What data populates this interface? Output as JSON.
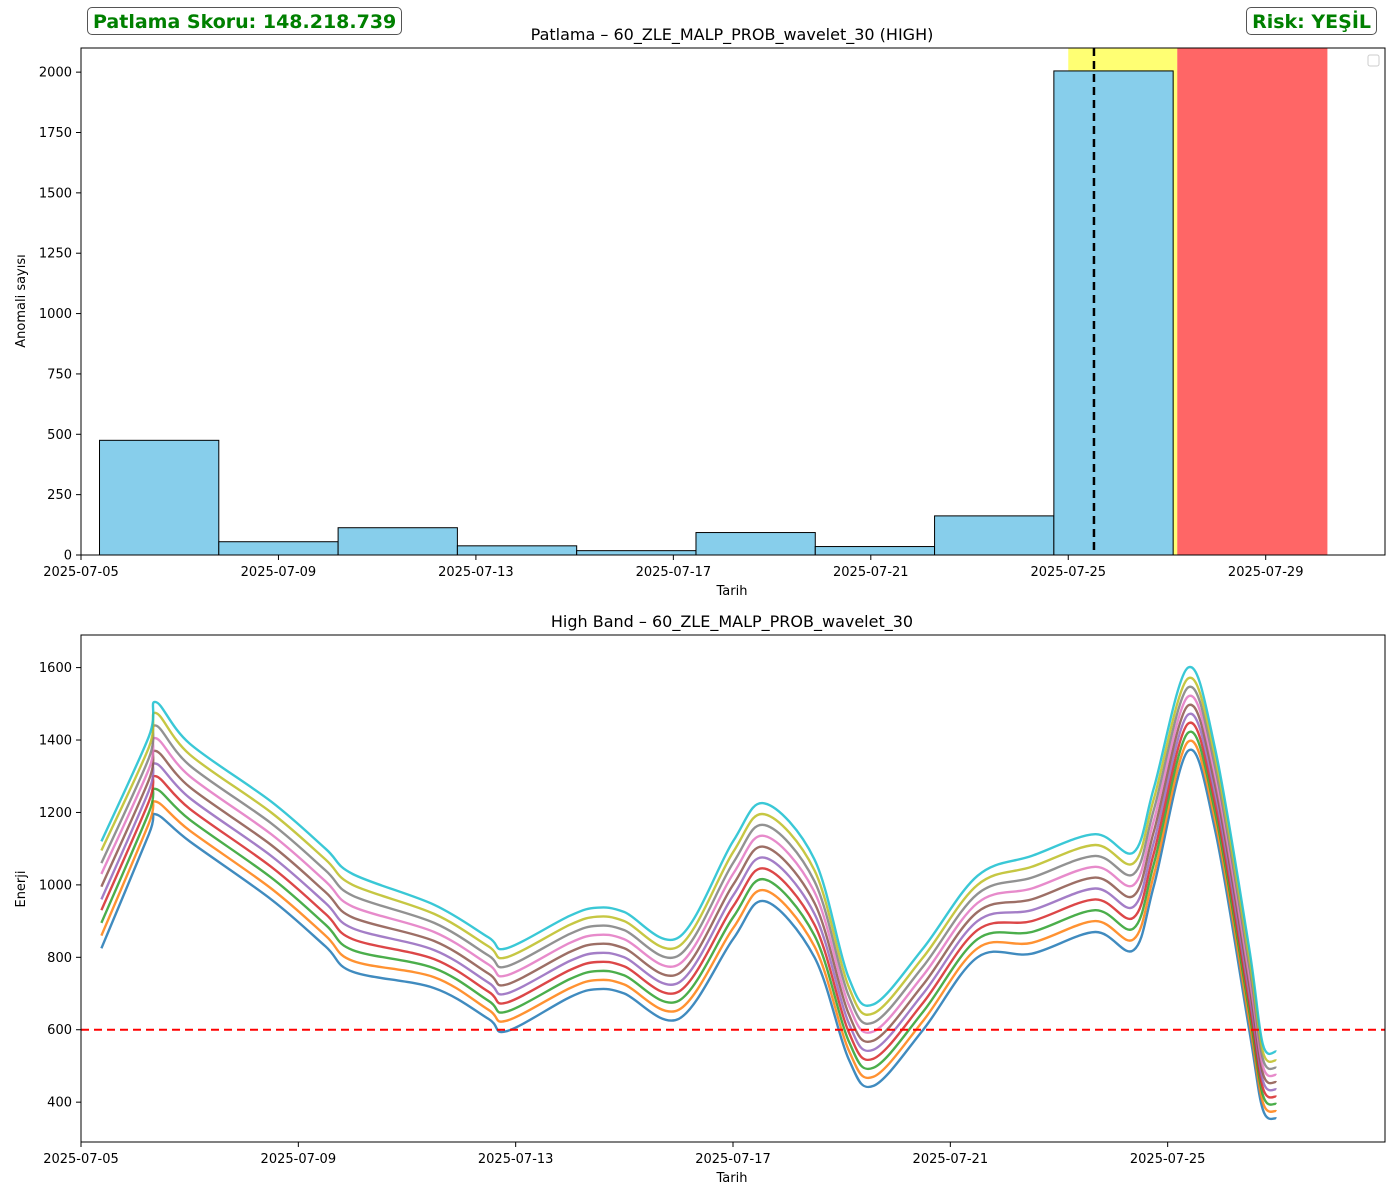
{
  "score_badge": "Patlama Skoru: 148.218.739",
  "risk_badge": "Risk: YEŞİL",
  "chart_data": [
    {
      "type": "bar",
      "title": "Patlama – 60_ZLE_MALP_PROB_wavelet_30 (HIGH)",
      "xlabel": "Tarih",
      "ylabel": "Anomali sayısı",
      "x_range": [
        "2025-07-05T00:00",
        "2025-07-31T10:00"
      ],
      "ylim": [
        0,
        2100
      ],
      "xticks": [
        "2025-07-05",
        "2025-07-09",
        "2025-07-13",
        "2025-07-17",
        "2025-07-21",
        "2025-07-25",
        "2025-07-29"
      ],
      "yticks": [
        0,
        250,
        500,
        750,
        1000,
        1250,
        1500,
        1750,
        2000
      ],
      "bins": [
        {
          "start": "2025-07-05T09:00",
          "end": "2025-07-07T19:00",
          "value": 475
        },
        {
          "start": "2025-07-07T19:00",
          "end": "2025-07-10T05:00",
          "value": 55
        },
        {
          "start": "2025-07-10T05:00",
          "end": "2025-07-12T15:00",
          "value": 113
        },
        {
          "start": "2025-07-12T15:00",
          "end": "2025-07-15T01:00",
          "value": 38
        },
        {
          "start": "2025-07-15T01:00",
          "end": "2025-07-17T11:00",
          "value": 18
        },
        {
          "start": "2025-07-17T11:00",
          "end": "2025-07-19T21:00",
          "value": 93
        },
        {
          "start": "2025-07-19T21:00",
          "end": "2025-07-22T07:00",
          "value": 35
        },
        {
          "start": "2025-07-22T07:00",
          "end": "2025-07-24T17:00",
          "value": 162
        },
        {
          "start": "2025-07-24T17:00",
          "end": "2025-07-27T03:00",
          "value": 2005
        }
      ],
      "bar_color": "#87ceeb",
      "spans": [
        {
          "start": "2025-07-25T00:00",
          "end": "2025-07-27T05:00",
          "color": "#ffff00",
          "alpha": 0.55
        },
        {
          "start": "2025-07-27T05:00",
          "end": "2025-07-30T06:00",
          "color": "#ff0000",
          "alpha": 0.6
        }
      ],
      "vline": {
        "x": "2025-07-25T12:30",
        "color": "#000000",
        "style": "dashed"
      },
      "legend": "top-right, empty"
    },
    {
      "type": "line",
      "title": "High Band – 60_ZLE_MALP_PROB_wavelet_30",
      "xlabel": "Tarih",
      "ylabel": "Enerji",
      "x_range": [
        "2025-07-05T00:00",
        "2025-07-29T00:00"
      ],
      "ylim": [
        290,
        1690
      ],
      "xticks": [
        "2025-07-05",
        "2025-07-09",
        "2025-07-13",
        "2025-07-17",
        "2025-07-21",
        "2025-07-25"
      ],
      "yticks": [
        400,
        600,
        800,
        1000,
        1200,
        1400,
        1600
      ],
      "threshold": {
        "y": 600,
        "color": "#ff0000",
        "style": "dashed"
      },
      "x": [
        "2025-07-05T09:00",
        "2025-07-06T06:00",
        "2025-07-06T09:00",
        "2025-07-07T00:00",
        "2025-07-08T12:00",
        "2025-07-09T12:00",
        "2025-07-10T00:00",
        "2025-07-11T12:00",
        "2025-07-12T12:00",
        "2025-07-12T20:00",
        "2025-07-14T00:00",
        "2025-07-14T12:00",
        "2025-07-15T00:00",
        "2025-07-16T00:00",
        "2025-07-17T00:00",
        "2025-07-17T14:00",
        "2025-07-18T12:00",
        "2025-07-19T03:00",
        "2025-07-19T14:00",
        "2025-07-20T12:00",
        "2025-07-21T12:00",
        "2025-07-22T12:00",
        "2025-07-23T16:00",
        "2025-07-24T09:00",
        "2025-07-24T18:00",
        "2025-07-25T09:00",
        "2025-07-25T21:00",
        "2025-07-26T12:00",
        "2025-07-26T18:00",
        "2025-07-27T00:00"
      ],
      "series": [
        {
          "color": "#1f77b4",
          "values": [
            825,
            1140,
            1195,
            1120,
            960,
            830,
            760,
            715,
            630,
            596,
            690,
            712,
            700,
            630,
            850,
            955,
            800,
            520,
            445,
            600,
            800,
            810,
            870,
            820,
            1000,
            1370,
            1150,
            600,
            380,
            355
          ]
        },
        {
          "color": "#ff7f0e",
          "values": [
            860,
            1170,
            1230,
            1150,
            990,
            860,
            790,
            745,
            655,
            625,
            715,
            737,
            725,
            655,
            880,
            985,
            830,
            545,
            470,
            625,
            825,
            840,
            900,
            850,
            1030,
            1395,
            1175,
            625,
            400,
            375
          ]
        },
        {
          "color": "#2ca02c",
          "values": [
            895,
            1200,
            1265,
            1180,
            1020,
            890,
            820,
            770,
            680,
            650,
            740,
            762,
            750,
            680,
            910,
            1015,
            860,
            570,
            495,
            650,
            850,
            870,
            930,
            880,
            1060,
            1420,
            1200,
            650,
            420,
            395
          ]
        },
        {
          "color": "#d62728",
          "values": [
            930,
            1230,
            1300,
            1210,
            1050,
            920,
            850,
            795,
            705,
            675,
            765,
            787,
            775,
            705,
            940,
            1045,
            890,
            595,
            520,
            675,
            875,
            900,
            960,
            910,
            1090,
            1445,
            1225,
            675,
            440,
            415
          ]
        },
        {
          "color": "#9467bd",
          "values": [
            960,
            1260,
            1335,
            1240,
            1080,
            950,
            880,
            820,
            730,
            700,
            790,
            812,
            800,
            730,
            970,
            1075,
            920,
            620,
            545,
            700,
            900,
            930,
            990,
            940,
            1120,
            1470,
            1250,
            700,
            460,
            435
          ]
        },
        {
          "color": "#8c564b",
          "values": [
            995,
            1290,
            1370,
            1270,
            1110,
            980,
            910,
            845,
            755,
            725,
            815,
            837,
            825,
            755,
            1000,
            1105,
            950,
            645,
            570,
            725,
            925,
            960,
            1020,
            970,
            1150,
            1495,
            1275,
            725,
            480,
            455
          ]
        },
        {
          "color": "#e377c2",
          "values": [
            1030,
            1320,
            1405,
            1300,
            1140,
            1010,
            940,
            870,
            780,
            750,
            840,
            862,
            850,
            780,
            1030,
            1135,
            980,
            670,
            595,
            750,
            950,
            990,
            1050,
            1000,
            1180,
            1520,
            1300,
            750,
            500,
            475
          ]
        },
        {
          "color": "#7f7f7f",
          "values": [
            1060,
            1350,
            1440,
            1330,
            1170,
            1040,
            970,
            895,
            805,
            775,
            865,
            887,
            875,
            805,
            1060,
            1165,
            1010,
            695,
            620,
            775,
            975,
            1020,
            1080,
            1030,
            1210,
            1545,
            1325,
            775,
            520,
            495
          ]
        },
        {
          "color": "#bcbd22",
          "values": [
            1095,
            1380,
            1475,
            1360,
            1200,
            1070,
            1000,
            920,
            830,
            800,
            890,
            912,
            900,
            830,
            1090,
            1195,
            1040,
            720,
            645,
            800,
            1000,
            1050,
            1110,
            1060,
            1240,
            1570,
            1350,
            800,
            540,
            515
          ]
        },
        {
          "color": "#17becf",
          "values": [
            1120,
            1410,
            1505,
            1390,
            1230,
            1100,
            1030,
            945,
            855,
            825,
            915,
            937,
            925,
            855,
            1120,
            1225,
            1070,
            745,
            670,
            825,
            1025,
            1080,
            1140,
            1090,
            1270,
            1600,
            1375,
            825,
            560,
            540
          ]
        }
      ]
    }
  ]
}
